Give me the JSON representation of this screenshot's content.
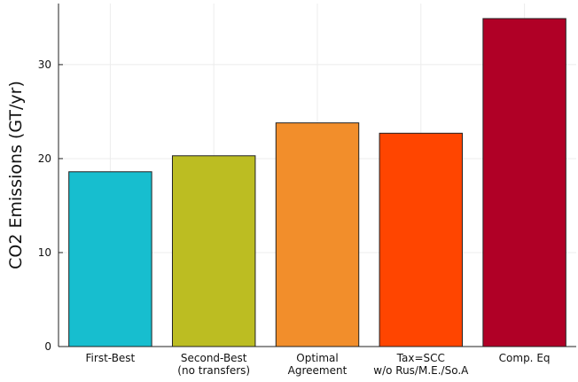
{
  "chart_data": {
    "type": "bar",
    "title": "",
    "xlabel": "",
    "ylabel": "CO2 Emissions (GT/yr)",
    "ylim": [
      0,
      36.5
    ],
    "yticks": [
      0,
      10,
      20,
      30
    ],
    "grid": true,
    "legend": "none",
    "categories": [
      [
        "First-Best"
      ],
      [
        "Second-Best",
        "(no transfers)"
      ],
      [
        "Optimal",
        "Agreement"
      ],
      [
        "Tax=SCC",
        "w/o Rus/M.E./So.A"
      ],
      [
        "Comp. Eq"
      ]
    ],
    "values": [
      18.6,
      20.3,
      23.8,
      22.7,
      34.9
    ],
    "colors": [
      "#17becf",
      "#bcbd22",
      "#f28e2b",
      "#ff4500",
      "#b00026"
    ]
  }
}
